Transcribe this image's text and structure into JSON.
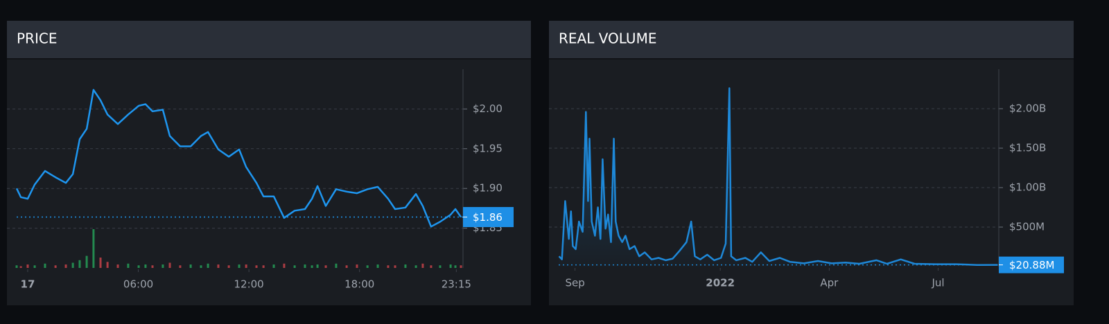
{
  "chart_data": [
    {
      "type": "line",
      "title": "PRICE",
      "color": "#1e96f0",
      "grid": true,
      "x": [
        -0.6,
        -0.37,
        0,
        0.38,
        0.94,
        1.51,
        2.07,
        2.45,
        2.82,
        3.2,
        3.57,
        3.95,
        4.33,
        4.89,
        5.45,
        6.02,
        6.39,
        6.77,
        7.33,
        7.71,
        8.27,
        8.84,
        9.4,
        9.78,
        10.34,
        10.91,
        11.47,
        11.85,
        12.41,
        12.79,
        13.35,
        13.91,
        14.48,
        15.04,
        15.42,
        15.72,
        16.17,
        16.73,
        17.3,
        17.86,
        18.43,
        18.99,
        19.55,
        19.93,
        20.49,
        21.06,
        21.43,
        21.88,
        22.37,
        22.94,
        23.2,
        23.5
      ],
      "values": [
        1.9,
        1.889,
        1.887,
        1.905,
        1.922,
        1.914,
        1.907,
        1.918,
        1.962,
        1.975,
        2.024,
        2.011,
        1.993,
        1.981,
        1.993,
        2.004,
        2.006,
        1.997,
        1.999,
        1.966,
        1.953,
        1.953,
        1.966,
        1.971,
        1.949,
        1.94,
        1.949,
        1.927,
        1.907,
        1.89,
        1.89,
        1.863,
        1.872,
        1.874,
        1.887,
        1.903,
        1.878,
        1.899,
        1.896,
        1.894,
        1.899,
        1.902,
        1.887,
        1.874,
        1.876,
        1.893,
        1.878,
        1.852,
        1.858,
        1.867,
        1.874,
        1.864
      ],
      "volume": [
        3,
        2,
        4,
        3,
        5,
        3,
        4,
        6,
        9,
        14,
        45,
        12,
        7,
        4,
        5,
        3,
        4,
        3,
        4,
        6,
        3,
        4,
        3,
        5,
        4,
        3,
        4,
        4,
        3,
        3,
        4,
        5,
        3,
        4,
        3,
        4,
        3,
        5,
        3,
        4,
        3,
        4,
        3,
        3,
        4,
        3,
        5,
        3,
        3,
        4,
        3,
        3
      ],
      "up_color": "#26a65b",
      "down_color": "#d0454c",
      "xlim": [
        -0.6,
        23.5
      ],
      "xticks": [
        {
          "value": 0,
          "label": "17"
        },
        {
          "value": 6,
          "label": "06:00"
        },
        {
          "value": 12,
          "label": "12:00"
        },
        {
          "value": 18,
          "label": "18:00"
        },
        {
          "value": 23.25,
          "label": "23:15"
        }
      ],
      "ylim": [
        1.8,
        2.05
      ],
      "yticks": [
        {
          "value": 1.85,
          "label": "$1.85"
        },
        {
          "value": 1.9,
          "label": "$1.90"
        },
        {
          "value": 1.95,
          "label": "$1.95"
        },
        {
          "value": 2,
          "label": "$2.00"
        }
      ],
      "current": {
        "value": 1.864,
        "label": "$1.86"
      }
    },
    {
      "type": "area",
      "title": "REAL VOLUME",
      "color": "#1e88d8",
      "grid": true,
      "x": [
        -0.44,
        -0.36,
        -0.27,
        -0.17,
        -0.11,
        -0.06,
        0.02,
        0.11,
        0.21,
        0.3,
        0.36,
        0.4,
        0.46,
        0.55,
        0.63,
        0.7,
        0.76,
        0.84,
        0.91,
        0.99,
        1.07,
        1.12,
        1.2,
        1.3,
        1.39,
        1.5,
        1.64,
        1.77,
        1.92,
        2.11,
        2.3,
        2.5,
        2.69,
        2.88,
        3.07,
        3.2,
        3.3,
        3.45,
        3.64,
        3.83,
        4.02,
        4.15,
        4.25,
        4.3,
        4.44,
        4.69,
        4.88,
        5.12,
        5.35,
        5.64,
        5.92,
        6.3,
        6.69,
        7.07,
        7.45,
        7.83,
        8.3,
        8.59,
        8.97,
        9.35,
        9.92,
        10.5,
        11.07,
        11.64
      ],
      "values": [
        130000000,
        90000000,
        830000000,
        350000000,
        700000000,
        260000000,
        220000000,
        570000000,
        440000000,
        1960000000,
        830000000,
        1620000000,
        570000000,
        390000000,
        750000000,
        350000000,
        1360000000,
        480000000,
        660000000,
        310000000,
        1620000000,
        570000000,
        390000000,
        310000000,
        390000000,
        220000000,
        260000000,
        130000000,
        180000000,
        90000000,
        110000000,
        80000000,
        100000000,
        200000000,
        310000000,
        570000000,
        130000000,
        90000000,
        150000000,
        80000000,
        110000000,
        290000000,
        2260000000,
        130000000,
        80000000,
        110000000,
        60000000,
        180000000,
        70000000,
        110000000,
        60000000,
        40000000,
        70000000,
        40000000,
        50000000,
        35000000,
        80000000,
        35000000,
        90000000,
        35000000,
        30000000,
        30000000,
        20000000,
        20880000
      ],
      "xlim": [
        -0.45,
        11.65
      ],
      "xticks": [
        {
          "value": 0,
          "label": "Sep"
        },
        {
          "value": 4,
          "label": "2022"
        },
        {
          "value": 7,
          "label": "Apr"
        },
        {
          "value": 10,
          "label": "Jul"
        }
      ],
      "ylim": [
        0,
        2500000000
      ],
      "yticks": [
        {
          "value": 500000000,
          "label": "$500M"
        },
        {
          "value": 1000000000,
          "label": "$1.00B"
        },
        {
          "value": 1500000000,
          "label": "$1.50B"
        },
        {
          "value": 2000000000,
          "label": "$2.00B"
        }
      ],
      "current": {
        "value": 20880000,
        "label": "$20.88M"
      }
    }
  ]
}
